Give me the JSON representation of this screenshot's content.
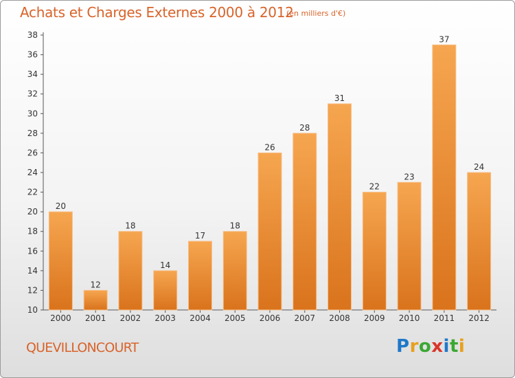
{
  "header": {
    "title": "Achats et Charges Externes 2000 à 2012",
    "subtitle": "(en milliers d'€)"
  },
  "footer": {
    "commune": "QUEVILLONCOURT",
    "logo": [
      "P",
      "r",
      "o",
      "x",
      "i",
      "t",
      "i"
    ],
    "logo_colors": [
      "#1f78c8",
      "#e8a01c",
      "#3aa832",
      "#d8362a",
      "#1f78c8",
      "#3aa832",
      "#e8a01c"
    ]
  },
  "chart_data": {
    "type": "bar",
    "title": "Achats et Charges Externes 2000 à 2012",
    "subtitle": "(en milliers d'€)",
    "categories": [
      "2000",
      "2001",
      "2002",
      "2003",
      "2004",
      "2005",
      "2006",
      "2007",
      "2008",
      "2009",
      "2010",
      "2011",
      "2012"
    ],
    "values": [
      20,
      12,
      18,
      14,
      17,
      18,
      26,
      28,
      31,
      22,
      23,
      37,
      24
    ],
    "xlabel": "",
    "ylabel": "",
    "ylim": [
      10,
      38
    ],
    "yticks": [
      10,
      12,
      14,
      16,
      18,
      20,
      22,
      24,
      26,
      28,
      30,
      32,
      34,
      36,
      38
    ],
    "grid": false,
    "bar_color_top": "#f6a650",
    "bar_color_bottom": "#d9731c"
  }
}
